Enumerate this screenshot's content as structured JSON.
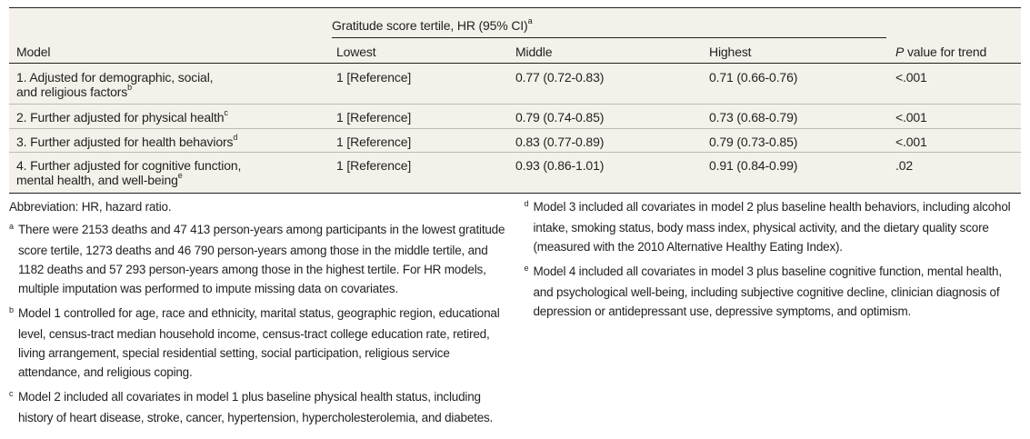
{
  "table": {
    "spanning_header": "Gratitude score tertile, HR (95% CI)",
    "spanning_header_mark": "a",
    "columns": {
      "model": "Model",
      "lowest": "Lowest",
      "middle": "Middle",
      "highest": "Highest",
      "p_italic": "P",
      "p_rest": " value for trend"
    },
    "rows": [
      {
        "line1": "1. Adjusted for demographic, social,",
        "line2": "and religious factors",
        "mark": "b",
        "lowest": "1 [Reference]",
        "middle": "0.77 (0.72-0.83)",
        "highest": "0.71 (0.66-0.76)",
        "p": "<.001"
      },
      {
        "line1": "2. Further adjusted for physical health",
        "line2": "",
        "mark": "c",
        "lowest": "1 [Reference]",
        "middle": "0.79 (0.74-0.85)",
        "highest": "0.73 (0.68-0.79)",
        "p": "<.001"
      },
      {
        "line1": "3. Further adjusted for health behaviors",
        "line2": "",
        "mark": "d",
        "lowest": "1 [Reference]",
        "middle": "0.83 (0.77-0.89)",
        "highest": "0.79 (0.73-0.85)",
        "p": "<.001"
      },
      {
        "line1": "4. Further adjusted for cognitive function,",
        "line2": "mental health, and well-being",
        "mark": "e",
        "lowest": "1 [Reference]",
        "middle": "0.93 (0.86-1.01)",
        "highest": "0.91 (0.84-0.99)",
        "p": ".02"
      }
    ]
  },
  "footnotes": {
    "abbreviation": "Abbreviation: HR, hazard ratio.",
    "items": [
      {
        "mark": "a",
        "text": "There were 2153 deaths and 47 413 person-years among participants in the lowest gratitude score tertile, 1273 deaths and 46 790 person-years among those in the middle tertile, and 1182 deaths and 57 293 person-years among those in the highest tertile. For HR models, multiple imputation was performed to impute missing data on covariates."
      },
      {
        "mark": "b",
        "text": "Model 1 controlled for age, race and ethnicity, marital status, geographic region, educational level, census-tract median household income, census-tract college education rate, retired, living arrangement, special residential setting, social participation, religious service attendance, and religious coping."
      },
      {
        "mark": "c",
        "text": "Model 2 included all covariates in model 1 plus baseline physical health status, including history of heart disease, stroke, cancer, hypertension, hypercholesterolemia, and diabetes."
      },
      {
        "mark": "d",
        "text": "Model 3 included all covariates in model 2 plus baseline health behaviors, including alcohol intake, smoking status, body mass index, physical activity, and the dietary quality score (measured with the 2010 Alternative Healthy Eating Index)."
      },
      {
        "mark": "e",
        "text": "Model 4 included all covariates in model 3 plus baseline cognitive function, mental health, and psychological well-being, including subjective cognitive decline, clinician diagnosis of depression or antidepressant use, depressive symptoms, and optimism."
      }
    ]
  },
  "colors": {
    "table_background": "#f3f1e9",
    "text": "#231f20"
  }
}
